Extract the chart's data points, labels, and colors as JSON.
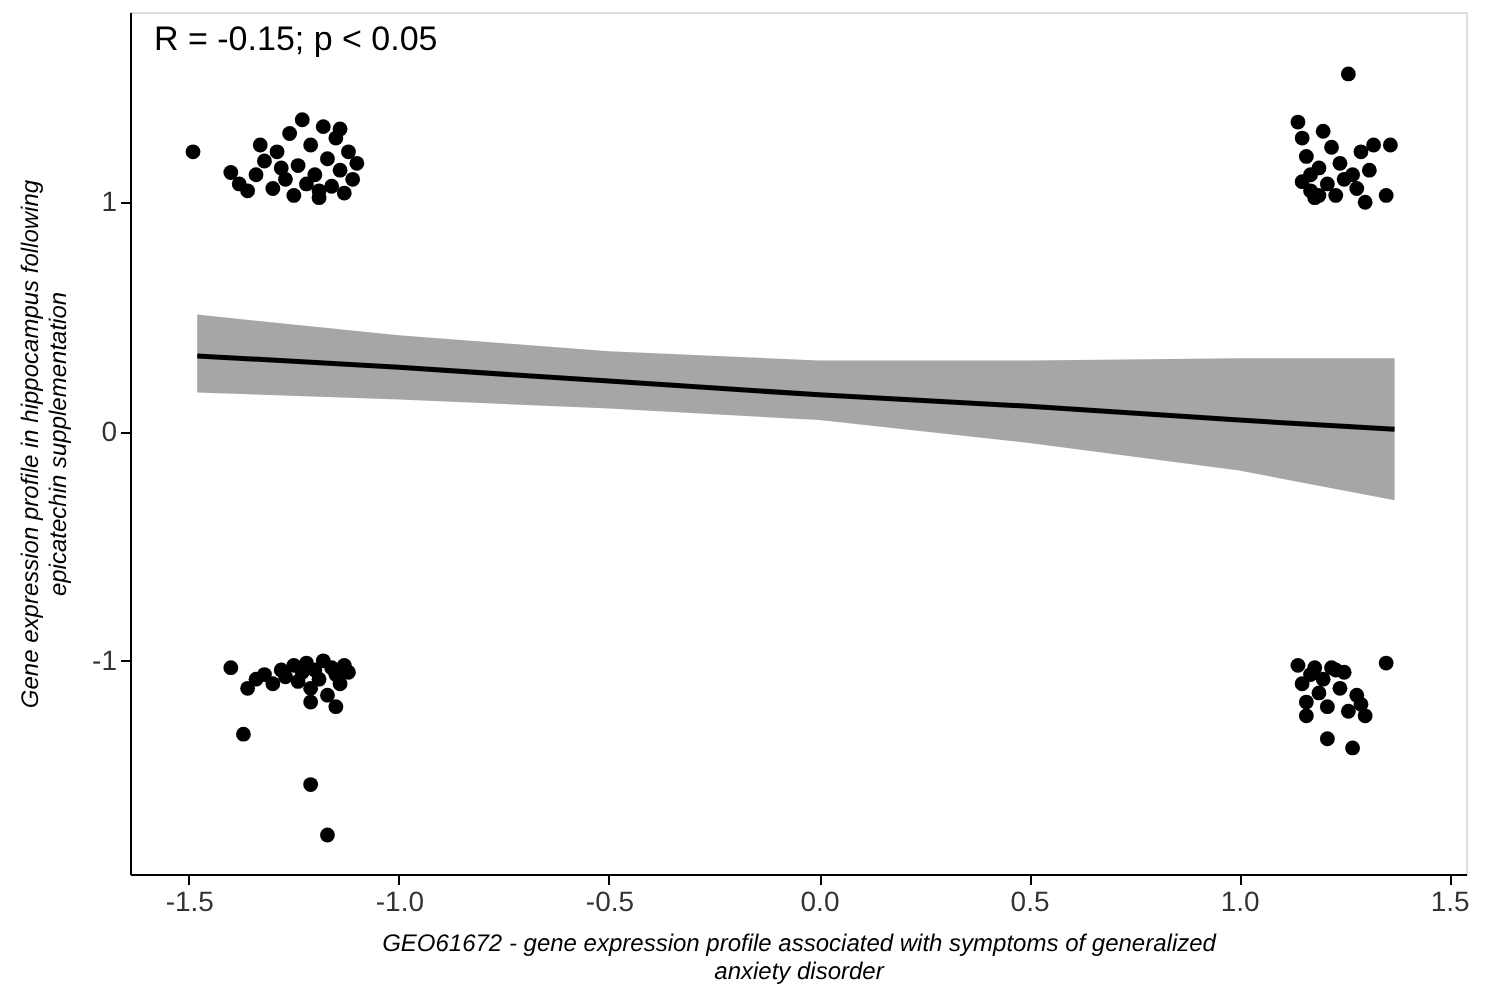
{
  "chart_data": {
    "type": "scatter",
    "xlabel": "GEO61672 - gene expression profile associated with symptoms of generalized anxiety disorder",
    "ylabel": "Gene expression profile in hippocampus following epicatechin supplementation",
    "annotations": [
      "R = -0.15; p < 0.05"
    ],
    "xlim": [
      -1.64,
      1.54
    ],
    "ylim": [
      -1.93,
      1.83
    ],
    "xticks": [
      {
        "value": -1.5,
        "label": "-1.5"
      },
      {
        "value": -1,
        "label": "-1.0"
      },
      {
        "value": -0.5,
        "label": "-0.5"
      },
      {
        "value": 0,
        "label": "0.0"
      },
      {
        "value": 0.5,
        "label": "0.5"
      },
      {
        "value": 1,
        "label": "1.0"
      },
      {
        "value": 1.5,
        "label": "1.5"
      }
    ],
    "yticks": [
      -1,
      0,
      1
    ],
    "grid": false,
    "series": [
      {
        "marker": "circle",
        "color": "#000000",
        "x": [
          -1.49,
          -1.4,
          -1.38,
          -1.36,
          -1.34,
          -1.32,
          -1.3,
          -1.29,
          -1.27,
          -1.26,
          -1.25,
          -1.24,
          -1.23,
          -1.22,
          -1.21,
          -1.2,
          -1.19,
          -1.18,
          -1.17,
          -1.16,
          -1.15,
          -1.14,
          -1.13,
          -1.12,
          -1.11,
          -1.1,
          -1.28,
          -1.33,
          -1.19,
          -1.14,
          1.14,
          1.15,
          1.16,
          1.17,
          1.17,
          1.18,
          1.19,
          1.2,
          1.21,
          1.22,
          1.23,
          1.24,
          1.26,
          1.27,
          1.28,
          1.29,
          1.3,
          1.31,
          1.32,
          1.36,
          1.35,
          1.25,
          1.19,
          1.15,
          -1.4,
          -1.37,
          -1.36,
          -1.34,
          -1.32,
          -1.3,
          -1.28,
          -1.27,
          -1.25,
          -1.24,
          -1.23,
          -1.22,
          -1.21,
          -1.2,
          -1.19,
          -1.18,
          -1.17,
          -1.16,
          -1.15,
          -1.14,
          -1.13,
          -1.12,
          -1.21,
          -1.15,
          -1.21,
          -1.17,
          1.14,
          1.15,
          1.16,
          1.16,
          1.17,
          1.18,
          1.19,
          1.2,
          1.21,
          1.21,
          1.23,
          1.24,
          1.25,
          1.26,
          1.27,
          1.28,
          1.29,
          1.3,
          1.35,
          1.22
        ],
        "values": [
          1.22,
          1.13,
          1.08,
          1.05,
          1.12,
          1.18,
          1.06,
          1.22,
          1.1,
          1.3,
          1.03,
          1.16,
          1.36,
          1.08,
          1.25,
          1.12,
          1.02,
          1.33,
          1.19,
          1.07,
          1.28,
          1.14,
          1.04,
          1.22,
          1.1,
          1.17,
          1.15,
          1.25,
          1.05,
          1.32,
          1.35,
          1.28,
          1.2,
          1.12,
          1.05,
          1.02,
          1.15,
          1.31,
          1.08,
          1.24,
          1.03,
          1.17,
          1.56,
          1.12,
          1.06,
          1.22,
          1.0,
          1.14,
          1.25,
          1.25,
          1.03,
          1.1,
          1.03,
          1.09,
          -1.03,
          -1.32,
          -1.12,
          -1.08,
          -1.06,
          -1.1,
          -1.04,
          -1.07,
          -1.02,
          -1.09,
          -1.05,
          -1.01,
          -1.12,
          -1.04,
          -1.08,
          -1.0,
          -1.15,
          -1.03,
          -1.06,
          -1.1,
          -1.02,
          -1.05,
          -1.18,
          -1.2,
          -1.54,
          -1.76,
          -1.02,
          -1.1,
          -1.18,
          -1.24,
          -1.06,
          -1.03,
          -1.14,
          -1.08,
          -1.2,
          -1.34,
          -1.04,
          -1.12,
          -1.05,
          -1.22,
          -1.38,
          -1.15,
          -1.19,
          -1.24,
          -1.01,
          -1.03
        ]
      },
      {
        "type": "line",
        "marker": "none",
        "color": "#000000",
        "x": [
          -1.48,
          -1.0,
          -0.5,
          0,
          0.5,
          1.0,
          1.37
        ],
        "values": [
          0.33,
          0.28,
          0.22,
          0.16,
          0.11,
          0.05,
          0.01
        ],
        "lower": [
          0.17,
          0.14,
          0.1,
          0.05,
          -0.05,
          -0.17,
          -0.3
        ],
        "upper": [
          0.51,
          0.42,
          0.35,
          0.31,
          0.31,
          0.32,
          0.32
        ]
      }
    ]
  }
}
